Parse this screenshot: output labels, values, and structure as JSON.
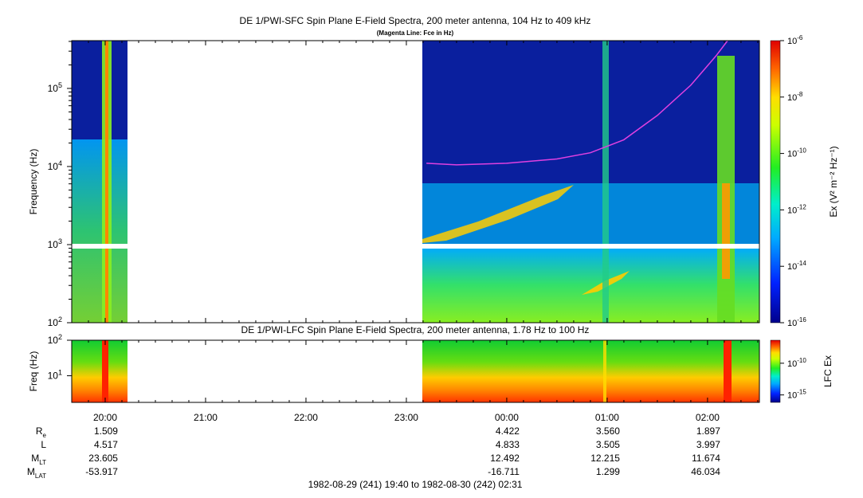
{
  "colors": {
    "background": "#ffffff",
    "spectrogram_floor": "#0a1f9e",
    "magenta_line": "#e040e0",
    "gap": "#ffffff"
  },
  "top_panel": {
    "title": "DE 1/PWI-SFC  Spin Plane E-Field Spectra, 200 meter antenna, 104 Hz to 409 kHz",
    "subtitle": "(Magenta Line: Fce in Hz)",
    "ylabel": "Frequency (Hz)",
    "colorbar_label": "Ex (V² m⁻² Hz⁻¹)"
  },
  "bottom_panel": {
    "title": "DE 1/PWI-LFC  Spin Plane E-Field Spectra, 200 meter antenna, 1.78 Hz to 100 Hz",
    "ylabel": "Freq (Hz)",
    "colorbar_label": "LFC Ex"
  },
  "ephemeris": {
    "labels": [
      {
        "base": "R",
        "sub": "e"
      },
      {
        "base": "L",
        "sub": ""
      },
      {
        "base": "M",
        "sub": "LT"
      },
      {
        "base": "M",
        "sub": "LAT"
      }
    ],
    "columns": [
      {
        "time": "20:00",
        "values": [
          "1.509",
          "4.517",
          "23.605",
          "-53.917"
        ]
      },
      {
        "time": "00:00",
        "values": [
          "4.422",
          "4.833",
          "12.492",
          "-16.711"
        ]
      },
      {
        "time": "01:00",
        "values": [
          "3.560",
          "3.505",
          "12.215",
          "1.299"
        ]
      },
      {
        "time": "02:00",
        "values": [
          "1.897",
          "3.997",
          "11.674",
          "46.034"
        ]
      }
    ]
  },
  "time_range": "1982-08-29 (241) 19:40 to 1982-08-30 (242) 02:31",
  "chart_data": [
    {
      "type": "heatmap",
      "title": "DE 1/PWI-SFC  Spin Plane E-Field Spectra, 200 meter antenna, 104 Hz to 409 kHz",
      "subtitle": "(Magenta Line: Fce in Hz)",
      "xlabel": "",
      "ylabel": "Frequency (Hz)",
      "y_scale": "log",
      "ylim": [
        100,
        409000
      ],
      "x_ticks": [
        "20:00",
        "21:00",
        "22:00",
        "23:00",
        "00:00",
        "01:00",
        "02:00"
      ],
      "y_ticks": [
        {
          "base": "10",
          "exp": "2"
        },
        {
          "base": "10",
          "exp": "3"
        },
        {
          "base": "10",
          "exp": "4"
        },
        {
          "base": "10",
          "exp": "5"
        }
      ],
      "data_gaps": [
        "20:12 to 23:12"
      ],
      "colorbar": {
        "label": "Ex (V² m⁻² Hz⁻¹)",
        "scale": "log",
        "range": [
          1e-16,
          1e-06
        ],
        "ticks": [
          {
            "base": "10",
            "exp": "-6"
          },
          {
            "base": "10",
            "exp": "-8"
          },
          {
            "base": "10",
            "exp": "-10"
          },
          {
            "base": "10",
            "exp": "-12"
          },
          {
            "base": "10",
            "exp": "-14"
          },
          {
            "base": "10",
            "exp": "-16"
          }
        ]
      },
      "series": [
        {
          "name": "Fce",
          "x": [
            "23:12",
            "23:30",
            "00:00",
            "00:30",
            "00:50",
            "01:10",
            "01:30",
            "01:50",
            "02:05",
            "02:12"
          ],
          "y": [
            11000,
            10500,
            11000,
            12500,
            15000,
            22000,
            45000,
            110000,
            260000,
            409000
          ]
        }
      ]
    },
    {
      "type": "heatmap",
      "title": "DE 1/PWI-LFC  Spin Plane E-Field Spectra, 200 meter antenna, 1.78 Hz to 100 Hz",
      "xlabel": "",
      "ylabel": "Freq (Hz)",
      "y_scale": "log",
      "ylim": [
        1.78,
        100
      ],
      "y_ticks": [
        {
          "base": "10",
          "exp": "1"
        },
        {
          "base": "10",
          "exp": "2"
        }
      ],
      "colorbar": {
        "label": "LFC Ex",
        "scale": "log",
        "ticks": [
          {
            "base": "10",
            "exp": "-10"
          },
          {
            "base": "10",
            "exp": "-15"
          }
        ]
      }
    }
  ]
}
